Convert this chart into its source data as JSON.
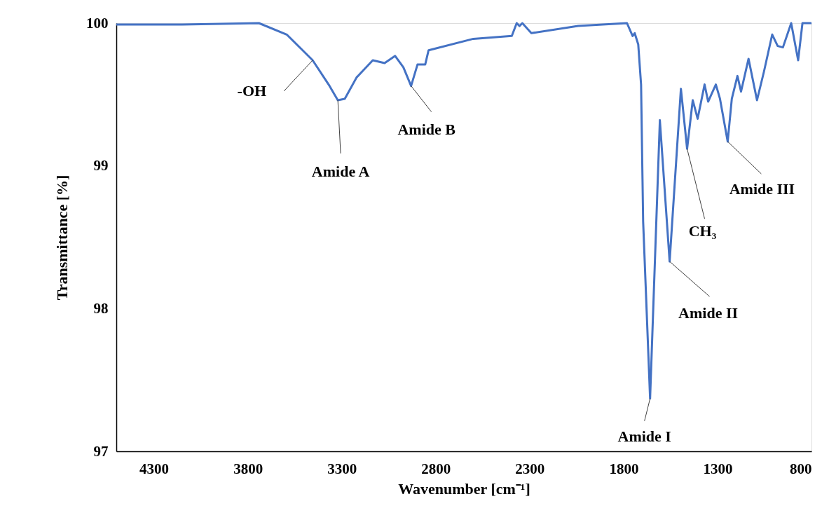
{
  "chart_data": {
    "type": "line",
    "xlabel": "Wavenumber [cm⁻¹]",
    "ylabel": "Transmittance [%]",
    "xlim": [
      4500,
      800
    ],
    "xticks": [
      4300,
      3800,
      3300,
      2800,
      2300,
      1800,
      1300,
      800
    ],
    "ylim": [
      97,
      100
    ],
    "yticks": [
      97,
      98,
      99,
      100
    ],
    "grid": false,
    "marker": "none",
    "line_style": "solid",
    "series": [
      {
        "color": "#4472c4",
        "x": [
          4500,
          4150,
          3741,
          3593,
          3455,
          3370,
          3321,
          3284,
          3221,
          3135,
          3072,
          3016,
          2972,
          2931,
          2897,
          2856,
          2838,
          2600,
          2395,
          2369,
          2354,
          2339,
          2291,
          2042,
          1782,
          1752,
          1741,
          1722,
          1707,
          1696,
          1659,
          1607,
          1555,
          1495,
          1462,
          1432,
          1406,
          1369,
          1350,
          1309,
          1287,
          1246,
          1224,
          1194,
          1175,
          1135,
          1090,
          1053,
          1009,
          980,
          952,
          908,
          871,
          848,
          800
        ],
        "values": [
          99.99,
          99.99,
          100.0,
          99.92,
          99.74,
          99.57,
          99.46,
          99.47,
          99.62,
          99.74,
          99.72,
          99.77,
          99.69,
          99.56,
          99.71,
          99.71,
          99.81,
          99.89,
          99.91,
          100.0,
          99.98,
          100.0,
          99.93,
          99.98,
          100.0,
          99.91,
          99.93,
          99.85,
          99.57,
          98.61,
          97.37,
          99.32,
          98.33,
          99.54,
          99.12,
          99.46,
          99.33,
          99.57,
          99.45,
          99.57,
          99.47,
          99.17,
          99.47,
          99.63,
          99.52,
          99.75,
          99.46,
          99.66,
          99.92,
          99.84,
          99.83,
          100.0,
          99.74,
          100.0,
          100.0
        ]
      }
    ],
    "annotations": [
      {
        "text": "-OH",
        "x": 3455,
        "y": 99.74
      },
      {
        "text": "Amide A",
        "x": 3321,
        "y": 99.46
      },
      {
        "text": "Amide B",
        "x": 2931,
        "y": 99.56
      },
      {
        "text": "Amide I",
        "x": 1659,
        "y": 97.37
      },
      {
        "text": "Amide II",
        "x": 1555,
        "y": 98.33
      },
      {
        "text": "CH₃",
        "x": 1462,
        "y": 99.12
      },
      {
        "text": "Amide III",
        "x": 1246,
        "y": 99.17
      }
    ]
  }
}
